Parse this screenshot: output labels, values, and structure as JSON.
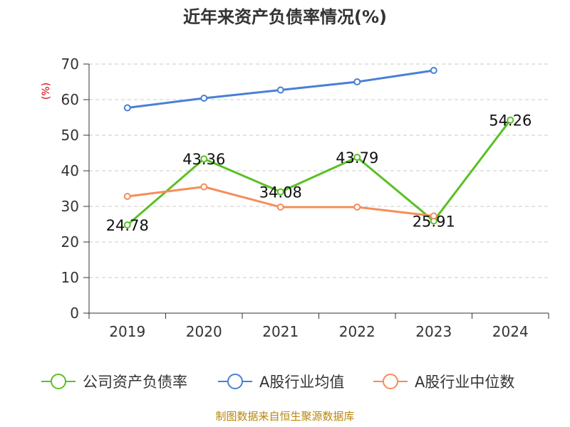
{
  "chart_data": {
    "type": "line",
    "title": "近年来资产负债率情况(%)",
    "ylabel": "(%)",
    "xlabel": "",
    "categories": [
      "2019",
      "2020",
      "2021",
      "2022",
      "2023",
      "2024"
    ],
    "ylim": [
      0,
      70
    ],
    "yticks": [
      0,
      10,
      20,
      30,
      40,
      50,
      60,
      70
    ],
    "grid": true,
    "legend_position": "bottom",
    "series": [
      {
        "name": "公司资产负债率",
        "color": "#5bc024",
        "values": [
          24.78,
          43.36,
          34.08,
          43.79,
          25.91,
          54.26
        ],
        "labels": [
          "24.78",
          "43.36",
          "34.08",
          "43.79",
          "25.91",
          "54.26"
        ]
      },
      {
        "name": "A股行业均值",
        "color": "#4a7fd6",
        "values": [
          57.7,
          60.4,
          62.7,
          65.0,
          68.2,
          null
        ]
      },
      {
        "name": "A股行业中位数",
        "color": "#f58d5a",
        "values": [
          32.8,
          35.5,
          29.8,
          29.8,
          27.3,
          null
        ]
      }
    ]
  },
  "source": "制图数据来自恒生聚源数据库"
}
